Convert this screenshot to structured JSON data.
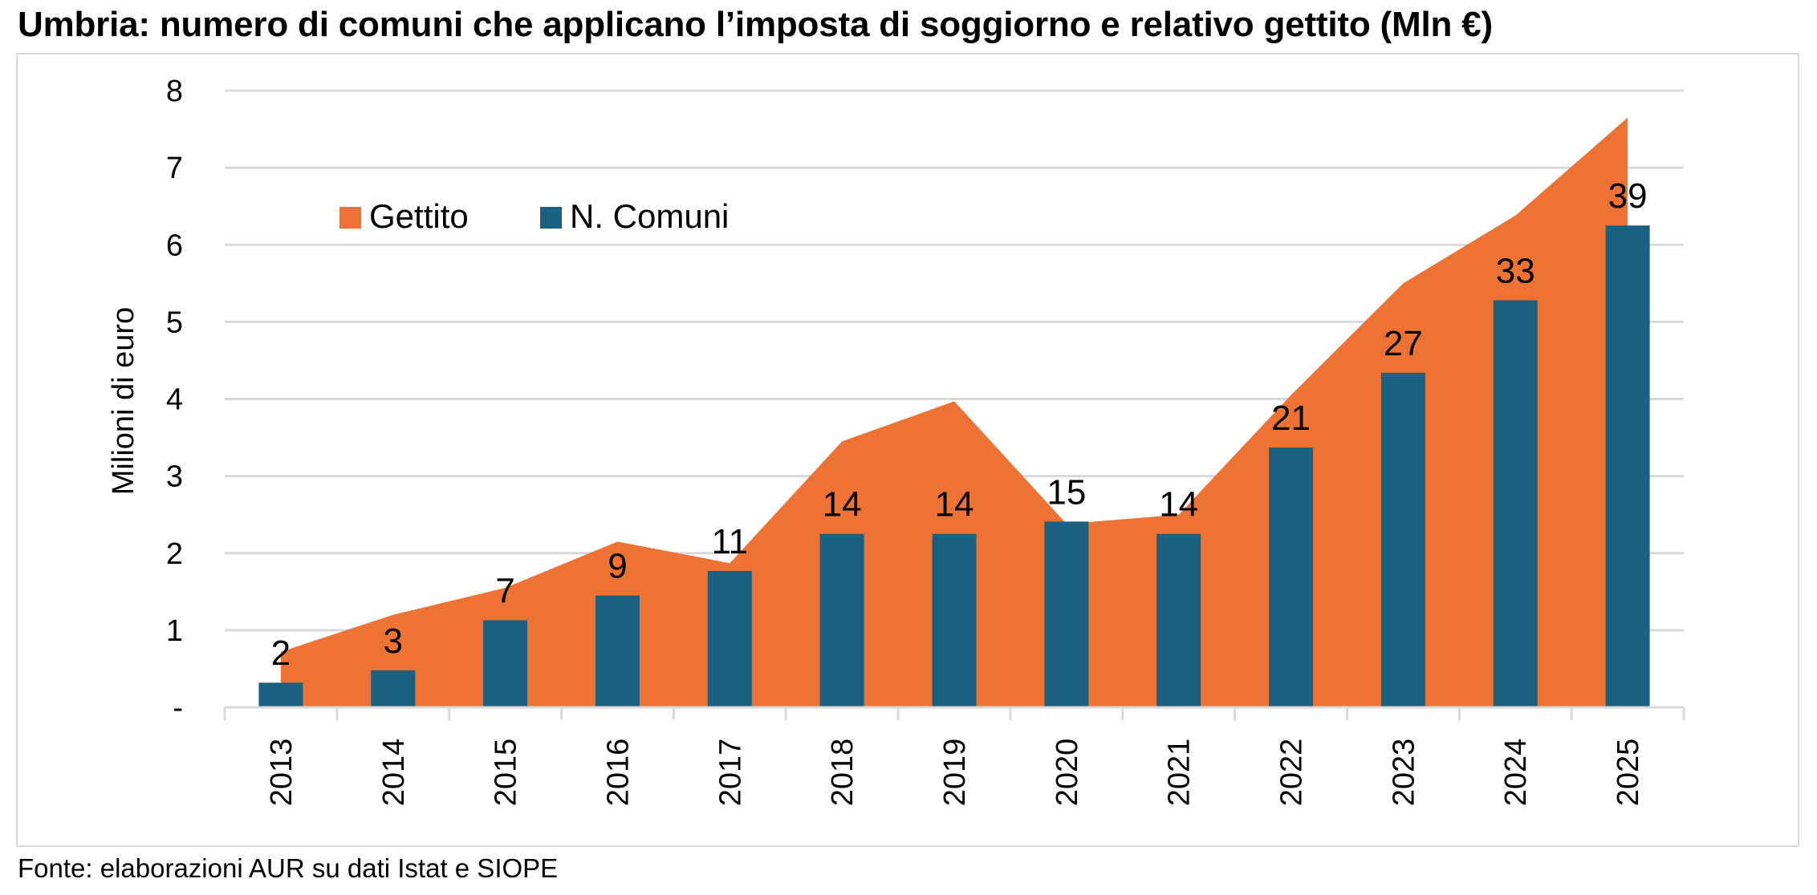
{
  "title": "Umbria: numero di comuni che applicano l’imposta di soggiorno e relativo gettito (Mln €)",
  "source": "Fonte: elaborazioni AUR su dati Istat e SIOPE",
  "chart_data": {
    "type": "bar",
    "categories": [
      "2013",
      "2014",
      "2015",
      "2016",
      "2017",
      "2018",
      "2019",
      "2020",
      "2021",
      "2022",
      "2023",
      "2024",
      "2025"
    ],
    "ylabel": "Milioni di euro",
    "ylim": [
      0,
      8
    ],
    "yticks": [
      0,
      1,
      2,
      3,
      4,
      5,
      6,
      7,
      8
    ],
    "ytick_labels": [
      "-",
      "1",
      "2",
      "3",
      "4",
      "5",
      "6",
      "7",
      "8"
    ],
    "grid": true,
    "legend_position": "top-left",
    "series": [
      {
        "name": "Gettito",
        "type": "area",
        "color": "#ED7233",
        "values": [
          0.72,
          1.2,
          1.55,
          2.15,
          1.87,
          3.45,
          3.97,
          2.38,
          2.5,
          4.05,
          5.5,
          6.38,
          7.65
        ]
      },
      {
        "name": "N. Comuni",
        "type": "bar",
        "color": "#1A6080",
        "values": [
          2,
          3,
          7,
          9,
          11,
          14,
          14,
          15,
          14,
          21,
          27,
          33,
          39
        ],
        "plotted_in_millions": [
          0.32,
          0.48,
          1.13,
          1.45,
          1.77,
          2.25,
          2.25,
          2.41,
          2.25,
          3.37,
          4.34,
          5.28,
          6.25
        ],
        "data_labels": [
          "2",
          "3",
          "7",
          "9",
          "11",
          "14",
          "14",
          "15",
          "14",
          "21",
          "27",
          "33",
          "39"
        ]
      }
    ]
  }
}
